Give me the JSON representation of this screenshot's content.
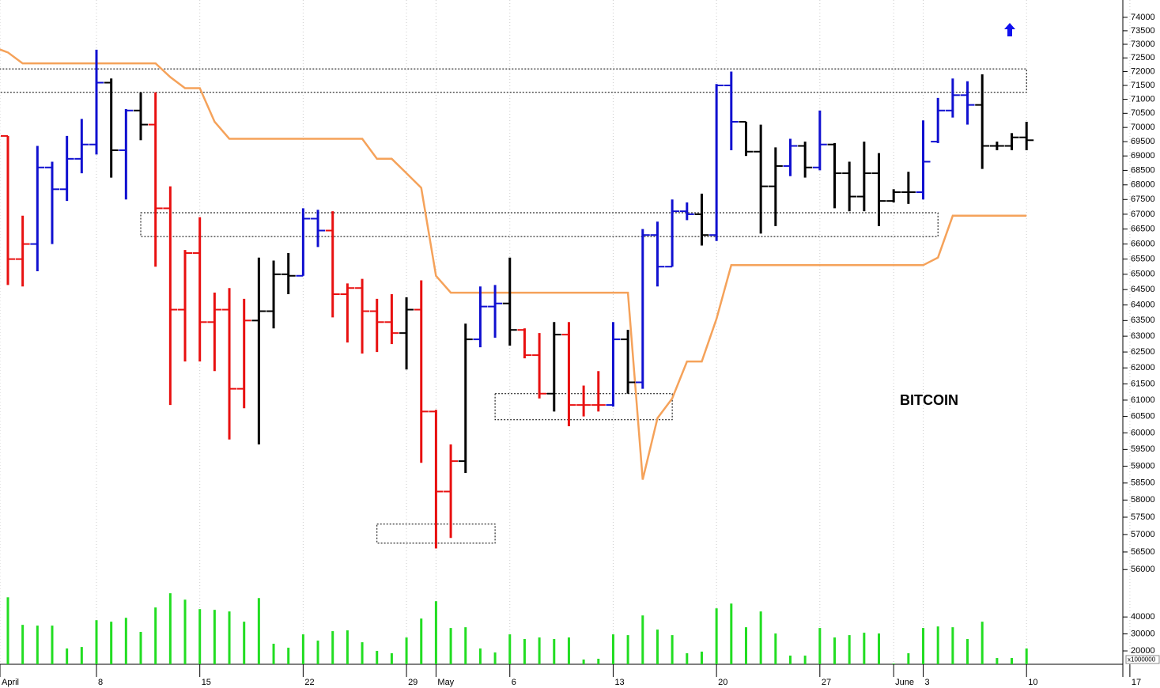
{
  "chart_data": {
    "type": "ohlc",
    "title": "BITCOIN",
    "log": true,
    "grid": true,
    "categories": [
      "April",
      null,
      null,
      null,
      null,
      null,
      null,
      "8",
      null,
      null,
      null,
      null,
      null,
      null,
      "15",
      null,
      null,
      null,
      null,
      null,
      null,
      "22",
      null,
      null,
      null,
      null,
      null,
      null,
      "29",
      null,
      "May",
      null,
      null,
      null,
      null,
      "6",
      null,
      null,
      null,
      null,
      null,
      null,
      "13",
      null,
      null,
      null,
      null,
      null,
      null,
      "20",
      null,
      null,
      null,
      null,
      null,
      null,
      "27",
      null,
      null,
      null,
      null,
      "June",
      null,
      "3",
      null,
      null,
      null,
      null,
      null,
      null,
      "10",
      null,
      null,
      null,
      null,
      null,
      null,
      "17"
    ],
    "open": [
      null,
      69700,
      65500,
      66000,
      68600,
      67850,
      68900,
      69400,
      71600,
      69200,
      70600,
      70100,
      67200,
      63850,
      65700,
      63450,
      63850,
      61350,
      63500,
      63800,
      65000,
      64950,
      66850,
      66450,
      64350,
      64550,
      63800,
      63450,
      63100,
      63850,
      60650,
      58250,
      59150,
      62900,
      63950,
      64050,
      63200,
      62400,
      61200,
      63050,
      60850,
      60850,
      60850,
      62900,
      61550,
      66300,
      65250,
      67100,
      67000,
      66300,
      71500,
      70200,
      69150,
      67950,
      68650,
      69350,
      68600,
      69400,
      68400,
      67600,
      68400,
      67450,
      67750,
      67750,
      69500,
      70600,
      71150,
      70800,
      69350,
      69350,
      69650,
      null,
      null,
      null,
      null,
      null,
      null,
      null
    ],
    "high": [
      null,
      69700,
      66950,
      69350,
      68800,
      69700,
      70300,
      72800,
      71750,
      70650,
      71250,
      71250,
      67950,
      65800,
      66900,
      64400,
      64550,
      64200,
      65550,
      65450,
      65700,
      67200,
      67150,
      67100,
      64700,
      64850,
      64200,
      64350,
      64250,
      64800,
      60700,
      59650,
      63400,
      64600,
      64650,
      65550,
      63250,
      63100,
      63450,
      63450,
      61450,
      61900,
      63450,
      63200,
      66500,
      66750,
      67500,
      67400,
      67700,
      71550,
      72000,
      70200,
      70100,
      69300,
      69600,
      69500,
      70600,
      69450,
      68800,
      69500,
      69100,
      67850,
      68450,
      70250,
      71050,
      71750,
      71650,
      71900,
      69500,
      69800,
      70200,
      null,
      null,
      null,
      null,
      null,
      null,
      null
    ],
    "low": [
      null,
      64650,
      64600,
      65100,
      66000,
      67450,
      68400,
      69050,
      68250,
      67500,
      69550,
      65250,
      60850,
      62200,
      62200,
      61900,
      59800,
      60750,
      59650,
      63250,
      64350,
      64950,
      65900,
      63600,
      62800,
      62450,
      62500,
      62750,
      61950,
      59100,
      56600,
      56900,
      58800,
      62650,
      62950,
      62700,
      62300,
      61050,
      60650,
      60200,
      60500,
      60650,
      60800,
      61200,
      61350,
      64600,
      65250,
      66800,
      65950,
      66100,
      69200,
      69000,
      66350,
      66600,
      68300,
      68250,
      68500,
      67200,
      67100,
      67100,
      66600,
      67400,
      67350,
      67500,
      69450,
      70350,
      70100,
      68550,
      69200,
      69200,
      69200,
      null,
      null,
      null,
      null,
      null,
      null,
      null
    ],
    "close": [
      null,
      65500,
      66000,
      68600,
      67850,
      68900,
      69400,
      71600,
      69200,
      70600,
      70100,
      67200,
      63850,
      65700,
      63450,
      63850,
      61350,
      63500,
      63800,
      65000,
      64950,
      66850,
      66450,
      64350,
      64550,
      63800,
      63450,
      63100,
      63850,
      60650,
      58250,
      59150,
      62900,
      63950,
      64050,
      63200,
      62400,
      61200,
      63050,
      60850,
      60850,
      60850,
      62900,
      61550,
      66300,
      65250,
      67100,
      67000,
      66300,
      71500,
      70200,
      69150,
      67950,
      68650,
      69350,
      68600,
      69400,
      68400,
      67600,
      68400,
      67450,
      67750,
      67750,
      68800,
      70600,
      71150,
      70800,
      69350,
      69350,
      69650,
      69550,
      null,
      null,
      null,
      null,
      null,
      null,
      null
    ],
    "colors": [
      null,
      "#e81010",
      "#e81010",
      "#1010d0",
      "#1010d0",
      "#1010d0",
      "#1010d0",
      "#1010d0",
      "#000000",
      "#1010d0",
      "#000000",
      "#e81010",
      "#e81010",
      "#e81010",
      "#e81010",
      "#e81010",
      "#e81010",
      "#e81010",
      "#000000",
      "#000000",
      "#000000",
      "#1010d0",
      "#1010d0",
      "#e81010",
      "#e81010",
      "#e81010",
      "#e81010",
      "#e81010",
      "#000000",
      "#e81010",
      "#e81010",
      "#e81010",
      "#000000",
      "#1010d0",
      "#1010d0",
      "#000000",
      "#e81010",
      "#e81010",
      "#000000",
      "#e81010",
      "#e81010",
      "#e81010",
      "#1010d0",
      "#000000",
      "#1010d0",
      "#1010d0",
      "#1010d0",
      "#1010d0",
      "#000000",
      "#1010d0",
      "#1010d0",
      "#000000",
      "#000000",
      "#000000",
      "#1010d0",
      "#000000",
      "#1010d0",
      "#000000",
      "#000000",
      "#000000",
      "#000000",
      "#000000",
      "#000000",
      "#1010d0",
      "#1010d0",
      "#1010d0",
      "#1010d0",
      "#000000",
      "#000000",
      "#000000",
      "#000000",
      null,
      null,
      null,
      null,
      null,
      null,
      null
    ],
    "stop_line": {
      "color": "#f5a25a",
      "values": [
        72900,
        72700,
        72300,
        72300,
        72300,
        72300,
        72300,
        72300,
        72300,
        72300,
        72300,
        72300,
        71800,
        71400,
        71400,
        70200,
        69600,
        69600,
        69600,
        69600,
        69600,
        69600,
        69600,
        69600,
        69600,
        69600,
        68900,
        68900,
        68400,
        67900,
        64950,
        64400,
        64400,
        64400,
        64400,
        64400,
        64400,
        64400,
        64400,
        64400,
        64400,
        64400,
        64400,
        64400,
        58600,
        60450,
        61050,
        62200,
        62200,
        63550,
        65300,
        65300,
        65300,
        65300,
        65300,
        65300,
        65300,
        65300,
        65300,
        65300,
        65300,
        65300,
        65300,
        65300,
        65550,
        66950,
        66950,
        66950,
        66950,
        66950,
        66950,
        null,
        null,
        null,
        null,
        null,
        null,
        null
      ]
    },
    "zones": [
      {
        "high": 72100,
        "low": 71250,
        "from": 0,
        "to": 70
      },
      {
        "high": 67050,
        "low": 66250,
        "from": 10,
        "to": 64
      },
      {
        "high": 61200,
        "low": 60400,
        "from": 34,
        "to": 46
      },
      {
        "high": 57300,
        "low": 56750,
        "from": 26,
        "to": 34
      }
    ],
    "volume": {
      "color": "#22dd22",
      "unit": "x1000000",
      "ylim": [
        12100,
        55000
      ],
      "yticks": [
        20000,
        30000,
        40000
      ],
      "values": [
        null,
        51600,
        35350,
        34900,
        34900,
        21400,
        22300,
        38100,
        37200,
        39500,
        31200,
        45600,
        54000,
        50200,
        44650,
        44200,
        43250,
        37200,
        51150,
        24200,
        21850,
        29750,
        26050,
        31650,
        32100,
        25100,
        20000,
        18600,
        27900,
        39050,
        49300,
        33500,
        33950,
        21400,
        19050,
        29750,
        27000,
        27900,
        27000,
        27900,
        14900,
        15350,
        29750,
        29300,
        40900,
        32550,
        29300,
        18600,
        19550,
        45100,
        47900,
        33950,
        43250,
        30250,
        17200,
        17200,
        33500,
        27900,
        29300,
        30700,
        30250,
        12550,
        18600,
        33500,
        34400,
        33950,
        27000,
        37200,
        15800,
        15800,
        21400,
        null,
        null,
        null,
        null,
        null,
        null,
        null
      ]
    },
    "ylim": [
      55560,
      74650
    ],
    "yticks": [
      56000,
      56500,
      57000,
      57500,
      58000,
      58500,
      59000,
      59500,
      60000,
      60500,
      61000,
      61500,
      62000,
      62500,
      63000,
      63500,
      64000,
      64500,
      65000,
      65500,
      66000,
      66500,
      67000,
      67500,
      68000,
      68500,
      69000,
      69500,
      70000,
      70500,
      71000,
      71500,
      72000,
      72500,
      73000,
      73500,
      74000
    ]
  }
}
